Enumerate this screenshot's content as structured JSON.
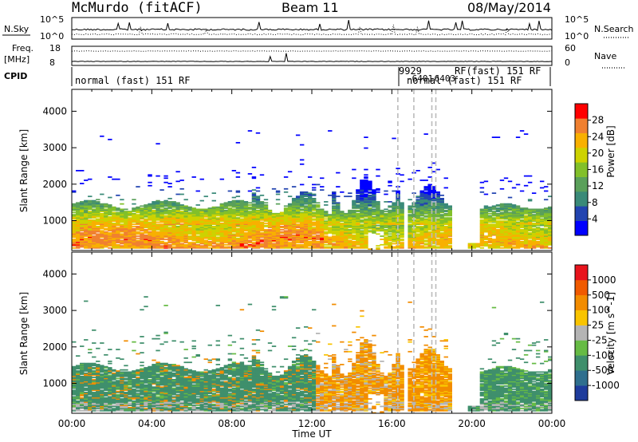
{
  "header": {
    "station": "McMurdo (fitACF)",
    "beam": "Beam 11",
    "date": "08/May/2014"
  },
  "top_panels": {
    "nsky_label": "N.Sky",
    "nsky_ticks": [
      "10^5",
      "10^0"
    ],
    "nsearch_label": "N.Search",
    "nsearch_ticks": [
      "10^5",
      "10^0"
    ],
    "freq_label_1": "Freq.",
    "freq_label_2": "[MHz]",
    "freq_ticks": [
      "18",
      "8"
    ],
    "nave_label": "Nave",
    "nave_ticks": [
      "60",
      "0"
    ],
    "cpid_label": "CPID",
    "cpid_texts": [
      "normal (fast) 151 RF",
      "9929",
      "-6401",
      "-6403",
      "RF(fast) 151 RF",
      "normal (fast) 151 RF"
    ]
  },
  "chart_data": [
    {
      "type": "heatmap",
      "title": "",
      "xlabel": "",
      "ylabel": "Slant Range [km]",
      "x_ticks": [
        "00:00",
        "04:00",
        "08:00",
        "12:00",
        "16:00",
        "20:00",
        "00:00"
      ],
      "y_ticks": [
        "1000",
        "2000",
        "3000",
        "4000"
      ],
      "ylim": [
        180,
        4600
      ],
      "colorbar_label": "Power [dB]",
      "colorbar_ticks": [
        "4",
        "8",
        "12",
        "16",
        "20",
        "24",
        "28"
      ],
      "colorbar_range": [
        0,
        32
      ],
      "colors": [
        "#0000ff",
        "#2244b0",
        "#3a8a78",
        "#5aa05a",
        "#82c02a",
        "#cdd200",
        "#f8b000",
        "#f08030",
        "#ff0000"
      ]
    },
    {
      "type": "heatmap",
      "title": "",
      "xlabel": "Time UT",
      "ylabel": "Slant Range [km]",
      "x_ticks": [
        "00:00",
        "04:00",
        "08:00",
        "12:00",
        "16:00",
        "20:00",
        "00:00"
      ],
      "y_ticks": [
        "1000",
        "2000",
        "3000",
        "4000"
      ],
      "ylim": [
        180,
        4600
      ],
      "colorbar_label": "Velocity [m s^-1]",
      "colorbar_ticks": [
        "1000",
        "500",
        "100",
        "25",
        "-25",
        "-100",
        "-500",
        "-1000"
      ],
      "colors": [
        "#1e3c9c",
        "#2f6f8e",
        "#3f8f6c",
        "#66bb44",
        "#b4b4b4",
        "#f9c400",
        "#f28c00",
        "#f05a00",
        "#e8141c"
      ]
    }
  ]
}
